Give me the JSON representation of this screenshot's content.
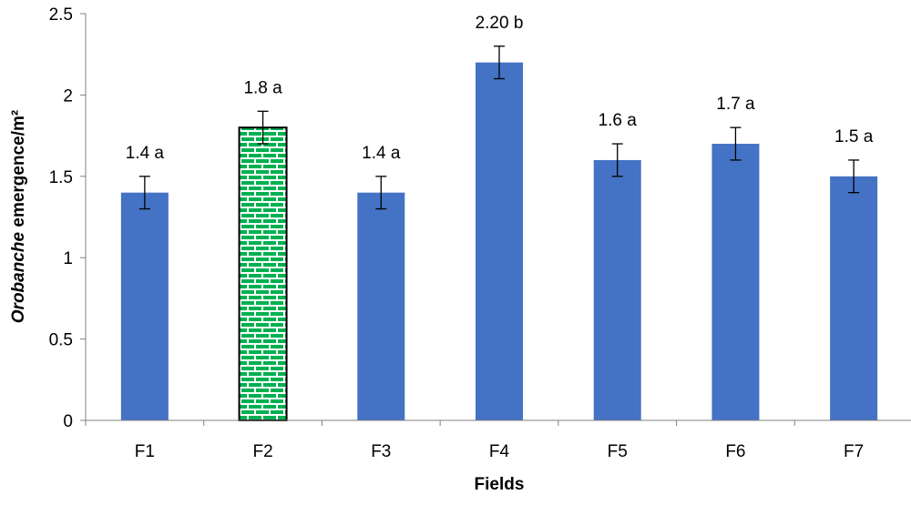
{
  "chart_data": {
    "type": "bar",
    "title": "",
    "xlabel": "Fields",
    "ylabel_italic": "Orobanche",
    "ylabel_rest": " emergence/m²",
    "categories": [
      "F1",
      "F2",
      "F3",
      "F4",
      "F5",
      "F6",
      "F7"
    ],
    "values": [
      1.4,
      1.8,
      1.4,
      2.2,
      1.6,
      1.7,
      1.5
    ],
    "error": [
      0.1,
      0.1,
      0.1,
      0.1,
      0.1,
      0.1,
      0.1
    ],
    "data_labels": [
      "1.4 a",
      "1.8 a",
      "1.4 a",
      "2.20 b",
      "1.6 a",
      "1.7 a",
      "1.5 a"
    ],
    "ylim": [
      0,
      2.5
    ],
    "yticks": [
      0,
      0.5,
      1,
      1.5,
      2,
      2.5
    ],
    "ytick_labels": [
      "0",
      "0.5",
      "1",
      "1.5",
      "2",
      "2.5"
    ],
    "grid": false,
    "legend": false,
    "colors": {
      "bar": "#4472C4",
      "highlight_bar_fill": "#00B050",
      "highlight_bar_mortar": "#ffffff",
      "highlight_bar_border": "#000000",
      "axis": "#808080",
      "errorbar": "#000000"
    },
    "highlight_category": "F2"
  }
}
